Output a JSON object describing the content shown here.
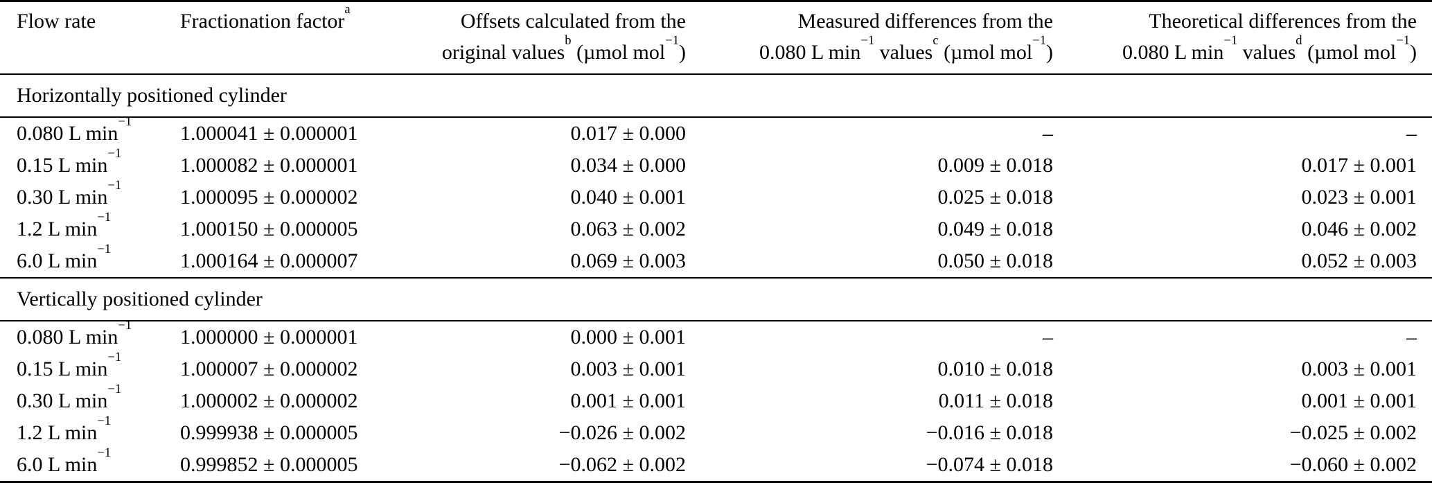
{
  "table": {
    "colors": {
      "text": "#000000",
      "rule": "#000000",
      "background": "#ffffff"
    },
    "headers": [
      "Flow rate",
      "Fractionation factor^{a}",
      "Offsets calculated from the\noriginal values^{b} (µmol mol^{−1})",
      "Measured differences from the\n0.080 L min^{−1} values^{c} (µmol mol^{−1})",
      "Theoretical differences from the\n0.080 L min^{−1} values^{d} (µmol mol^{−1})"
    ],
    "sections": [
      {
        "title": "Horizontally positioned cylinder",
        "rows": [
          [
            "0.080 L min^{−1}",
            "1.000041 ± 0.000001",
            "0.017 ± 0.000",
            "–",
            "–"
          ],
          [
            "0.15 L min^{−1}",
            "1.000082 ± 0.000001",
            "0.034 ± 0.000",
            "0.009 ± 0.018",
            "0.017 ± 0.001"
          ],
          [
            "0.30 L min^{−1}",
            "1.000095 ± 0.000002",
            "0.040 ± 0.001",
            "0.025 ± 0.018",
            "0.023 ± 0.001"
          ],
          [
            "1.2 L min^{−1}",
            "1.000150 ± 0.000005",
            "0.063 ± 0.002",
            "0.049 ± 0.018",
            "0.046 ± 0.002"
          ],
          [
            "6.0 L min^{−1}",
            "1.000164 ± 0.000007",
            "0.069 ± 0.003",
            "0.050 ± 0.018",
            "0.052 ± 0.003"
          ]
        ]
      },
      {
        "title": "Vertically positioned cylinder",
        "rows": [
          [
            "0.080 L min^{−1}",
            "1.000000 ± 0.000001",
            "0.000 ± 0.001",
            "–",
            "–"
          ],
          [
            "0.15 L min^{−1}",
            "1.000007 ± 0.000002",
            "0.003 ± 0.001",
            "0.010 ± 0.018",
            "0.003 ± 0.001"
          ],
          [
            "0.30 L min^{−1}",
            "1.000002 ± 0.000002",
            "0.001 ± 0.001",
            "0.011 ± 0.018",
            "0.001 ± 0.001"
          ],
          [
            "1.2 L min^{−1}",
            "0.999938 ± 0.000005",
            "−0.026 ± 0.002",
            "−0.016 ± 0.018",
            "−0.025 ± 0.002"
          ],
          [
            "6.0 L min^{−1}",
            "0.999852 ± 0.000005",
            "−0.062 ± 0.002",
            "−0.074 ± 0.018",
            "−0.060 ± 0.002"
          ]
        ]
      }
    ]
  }
}
